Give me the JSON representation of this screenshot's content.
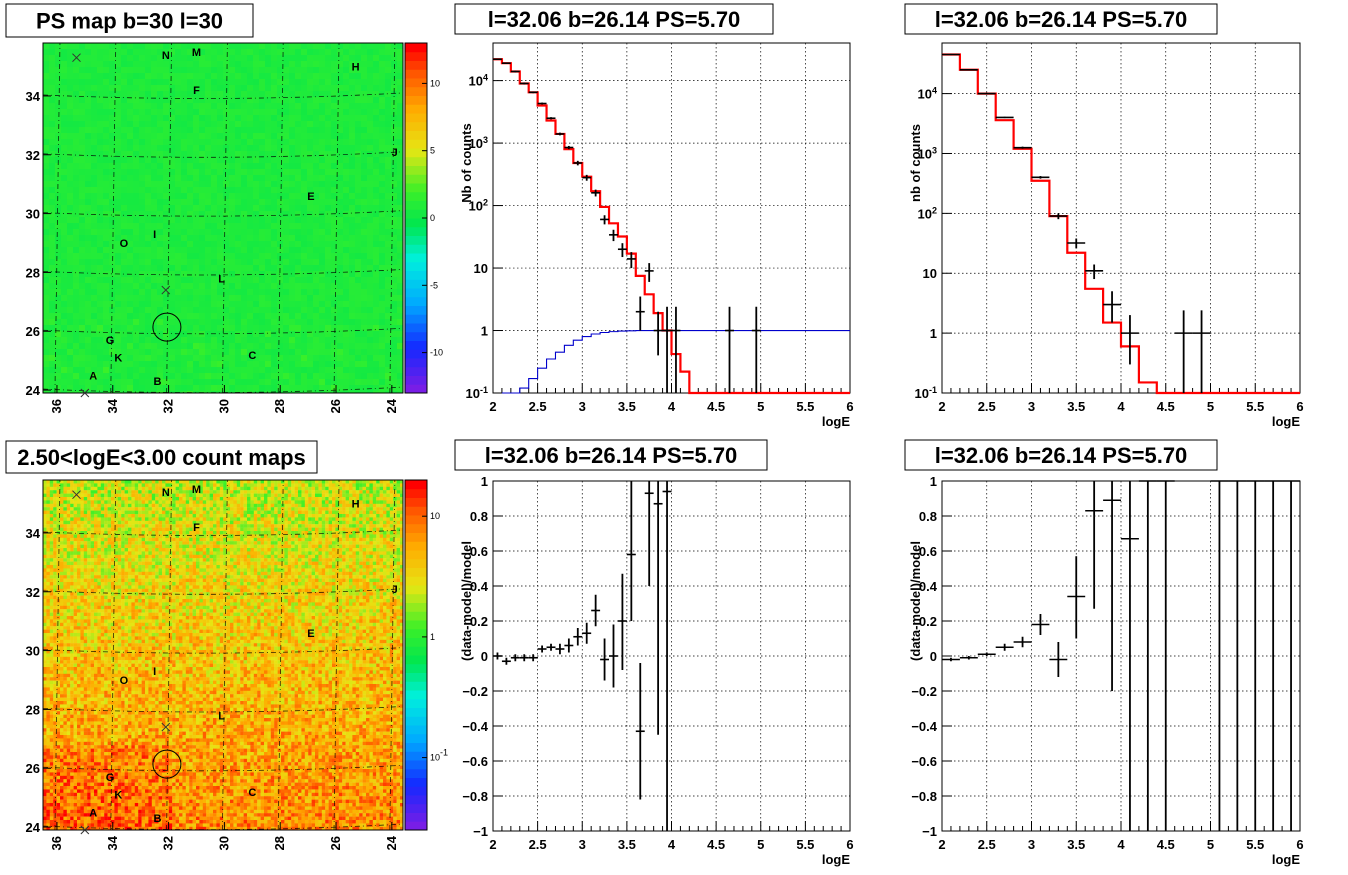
{
  "chart_data": [
    {
      "type": "heatmap",
      "title": "PS map b=30 l=30",
      "xlabel": "",
      "ylabel": "",
      "x_ticks": [
        "36",
        "34",
        "32",
        "30",
        "28",
        "26",
        "24"
      ],
      "y_ticks": [
        "24",
        "26",
        "28",
        "30",
        "32",
        "34"
      ],
      "xlim": [
        36.5,
        23.6
      ],
      "ylim": [
        23.9,
        35.8
      ],
      "palette_ticks": [
        "-10",
        "-5",
        "0",
        "5",
        "10"
      ],
      "palette_range": [
        -13,
        13
      ],
      "sources": [
        {
          "label": "N",
          "l": 32.1,
          "b": 35.4
        },
        {
          "label": "M",
          "l": 31.0,
          "b": 35.5
        },
        {
          "label": "H",
          "l": 25.3,
          "b": 35.0
        },
        {
          "label": "F",
          "l": 31.0,
          "b": 34.2
        },
        {
          "label": "J",
          "l": 23.9,
          "b": 32.1
        },
        {
          "label": "E",
          "l": 26.9,
          "b": 30.6
        },
        {
          "label": "I",
          "l": 32.5,
          "b": 29.3
        },
        {
          "label": "O",
          "l": 33.6,
          "b": 29.0
        },
        {
          "label": "L",
          "l": 30.1,
          "b": 27.8
        },
        {
          "label": "G",
          "l": 34.1,
          "b": 25.7
        },
        {
          "label": "K",
          "l": 33.8,
          "b": 25.1
        },
        {
          "label": "C",
          "l": 29.0,
          "b": 25.2
        },
        {
          "label": "A",
          "l": 34.7,
          "b": 24.5
        },
        {
          "label": "B",
          "l": 32.4,
          "b": 24.3
        }
      ],
      "crosses": [
        {
          "l": 35.3,
          "b": 35.3
        },
        {
          "l": 32.1,
          "b": 27.4
        },
        {
          "l": 35.0,
          "b": 23.9
        }
      ],
      "circle": {
        "l": 32.06,
        "b": 26.14
      }
    },
    {
      "type": "line",
      "title": "l=32.06 b=26.14 PS=5.70",
      "xlabel": "logE",
      "ylabel": "Nb of counts",
      "xlim": [
        2,
        6
      ],
      "ylim": [
        0.1,
        40000
      ],
      "y_scale": "log",
      "x_ticks": [
        "2",
        "2.5",
        "3",
        "3.5",
        "4",
        "4.5",
        "5",
        "5.5",
        "6"
      ],
      "y_ticks": [
        "10^-1",
        "1",
        "10",
        "10^2",
        "10^3",
        "10^4"
      ],
      "bin_width": 0.1,
      "series": [
        {
          "color": "#ff0000",
          "x": [
            2.0,
            2.1,
            2.2,
            2.3,
            2.4,
            2.5,
            2.6,
            2.7,
            2.8,
            2.9,
            3.0,
            3.1,
            3.2,
            3.3,
            3.4,
            3.5,
            3.6,
            3.7,
            3.8,
            3.9,
            4.0,
            4.1,
            4.2,
            4.3
          ],
          "values": [
            22000,
            19000,
            14000,
            9000,
            6500,
            4000,
            2300,
            1400,
            800,
            480,
            290,
            170,
            95,
            52,
            32,
            17,
            7.5,
            3.8,
            1.9,
            1.0,
            0.42,
            0.22,
            0.1,
            0.1
          ]
        },
        {
          "color": "#0000cc",
          "x": [
            2.1,
            2.2,
            2.3,
            2.4,
            2.5,
            2.6,
            2.7,
            2.8,
            2.9,
            3.0,
            3.1,
            3.2,
            3.3,
            3.4,
            3.5,
            3.6,
            3.7,
            3.8,
            3.9,
            4.0,
            4.5,
            5.0,
            5.5,
            6.0
          ],
          "values": [
            0.1,
            0.1,
            0.12,
            0.17,
            0.25,
            0.35,
            0.45,
            0.58,
            0.7,
            0.8,
            0.88,
            0.93,
            0.96,
            0.98,
            0.99,
            1.0,
            1.0,
            1.0,
            1.0,
            1.0,
            1.0,
            1.0,
            1.0,
            1.0
          ]
        }
      ],
      "points": [
        {
          "x": 2.05,
          "y": 22000,
          "lo": 21500,
          "hi": 22500
        },
        {
          "x": 2.15,
          "y": 19000,
          "lo": 18500,
          "hi": 19500
        },
        {
          "x": 2.25,
          "y": 14000,
          "lo": 13600,
          "hi": 14400
        },
        {
          "x": 2.35,
          "y": 9000,
          "lo": 8700,
          "hi": 9300
        },
        {
          "x": 2.45,
          "y": 6500,
          "lo": 6300,
          "hi": 6700
        },
        {
          "x": 2.55,
          "y": 4300,
          "lo": 4150,
          "hi": 4450
        },
        {
          "x": 2.65,
          "y": 2500,
          "lo": 2400,
          "hi": 2600
        },
        {
          "x": 2.75,
          "y": 1400,
          "lo": 1330,
          "hi": 1470
        },
        {
          "x": 2.85,
          "y": 850,
          "lo": 800,
          "hi": 900
        },
        {
          "x": 2.95,
          "y": 480,
          "lo": 440,
          "hi": 520
        },
        {
          "x": 3.05,
          "y": 280,
          "lo": 250,
          "hi": 310
        },
        {
          "x": 3.15,
          "y": 160,
          "lo": 140,
          "hi": 180
        },
        {
          "x": 3.25,
          "y": 60,
          "lo": 50,
          "hi": 70
        },
        {
          "x": 3.35,
          "y": 34,
          "lo": 27,
          "hi": 41
        },
        {
          "x": 3.45,
          "y": 20,
          "lo": 15,
          "hi": 25
        },
        {
          "x": 3.55,
          "y": 14,
          "lo": 10,
          "hi": 18
        },
        {
          "x": 3.65,
          "y": 2,
          "lo": 1,
          "hi": 3.5
        },
        {
          "x": 3.75,
          "y": 9,
          "lo": 6,
          "hi": 12
        },
        {
          "x": 3.85,
          "y": 1,
          "lo": 0.4,
          "hi": 2
        },
        {
          "x": 3.95,
          "y": 1,
          "lo": 0.1,
          "hi": 2.4
        },
        {
          "x": 4.05,
          "y": 1,
          "lo": 0.1,
          "hi": 2.4
        },
        {
          "x": 4.65,
          "y": 1,
          "lo": 0.1,
          "hi": 2.4
        },
        {
          "x": 4.95,
          "y": 1,
          "lo": 0.1,
          "hi": 2.4
        }
      ]
    },
    {
      "type": "line",
      "title": "l=32.06 b=26.14 PS=5.70",
      "xlabel": "logE",
      "ylabel": "nb of counts",
      "xlim": [
        2,
        6
      ],
      "ylim": [
        0.1,
        70000
      ],
      "y_scale": "log",
      "x_ticks": [
        "2",
        "2.5",
        "3",
        "3.5",
        "4",
        "4.5",
        "5",
        "5.5",
        "6"
      ],
      "y_ticks": [
        "10^-1",
        "1",
        "10",
        "10^2",
        "10^3",
        "10^4"
      ],
      "bin_width": 0.2,
      "series": [
        {
          "color": "#ff0000",
          "x": [
            2.0,
            2.2,
            2.4,
            2.6,
            2.8,
            3.0,
            3.2,
            3.4,
            3.6,
            3.8,
            4.0,
            4.2,
            4.4
          ],
          "values": [
            45000,
            25000,
            10000,
            3600,
            1200,
            350,
            90,
            22,
            5.5,
            1.5,
            0.6,
            0.15,
            0.1
          ]
        }
      ],
      "points": [
        {
          "x": 2.1,
          "y": 45000,
          "lo": 44000,
          "hi": 46000
        },
        {
          "x": 2.3,
          "y": 25000,
          "lo": 24500,
          "hi": 25500
        },
        {
          "x": 2.5,
          "y": 10000,
          "lo": 9800,
          "hi": 10200
        },
        {
          "x": 2.7,
          "y": 4000,
          "lo": 3900,
          "hi": 4100
        },
        {
          "x": 2.9,
          "y": 1250,
          "lo": 1200,
          "hi": 1300
        },
        {
          "x": 3.1,
          "y": 400,
          "lo": 380,
          "hi": 420
        },
        {
          "x": 3.3,
          "y": 90,
          "lo": 80,
          "hi": 100
        },
        {
          "x": 3.5,
          "y": 32,
          "lo": 26,
          "hi": 38
        },
        {
          "x": 3.7,
          "y": 11,
          "lo": 8,
          "hi": 14
        },
        {
          "x": 3.9,
          "y": 3,
          "lo": 1.5,
          "hi": 5
        },
        {
          "x": 4.1,
          "y": 1,
          "lo": 0.3,
          "hi": 2
        },
        {
          "x": 4.7,
          "y": 1,
          "lo": 0.1,
          "hi": 2.4
        },
        {
          "x": 4.9,
          "y": 1,
          "lo": 0.1,
          "hi": 2.4
        }
      ]
    },
    {
      "type": "heatmap",
      "title": "2.50<logE<3.00 count maps",
      "xlabel": "",
      "ylabel": "",
      "x_ticks": [
        "36",
        "34",
        "32",
        "30",
        "28",
        "26",
        "24"
      ],
      "y_ticks": [
        "24",
        "26",
        "28",
        "30",
        "32",
        "34"
      ],
      "xlim": [
        36.5,
        23.6
      ],
      "ylim": [
        23.9,
        35.8
      ],
      "palette_ticks": [
        "10^-1",
        "1",
        "10"
      ],
      "palette_scale": "log",
      "sources": [
        {
          "label": "N",
          "l": 32.1,
          "b": 35.4
        },
        {
          "label": "M",
          "l": 31.0,
          "b": 35.5
        },
        {
          "label": "H",
          "l": 25.3,
          "b": 35.0
        },
        {
          "label": "F",
          "l": 31.0,
          "b": 34.2
        },
        {
          "label": "J",
          "l": 23.9,
          "b": 32.1
        },
        {
          "label": "E",
          "l": 26.9,
          "b": 30.6
        },
        {
          "label": "I",
          "l": 32.5,
          "b": 29.3
        },
        {
          "label": "O",
          "l": 33.6,
          "b": 29.0
        },
        {
          "label": "L",
          "l": 30.1,
          "b": 27.8
        },
        {
          "label": "G",
          "l": 34.1,
          "b": 25.7
        },
        {
          "label": "K",
          "l": 33.8,
          "b": 25.1
        },
        {
          "label": "C",
          "l": 29.0,
          "b": 25.2
        },
        {
          "label": "A",
          "l": 34.7,
          "b": 24.5
        },
        {
          "label": "B",
          "l": 32.4,
          "b": 24.3
        }
      ],
      "crosses": [
        {
          "l": 35.3,
          "b": 35.3
        },
        {
          "l": 32.1,
          "b": 27.4
        },
        {
          "l": 35.0,
          "b": 23.9
        }
      ],
      "circle": {
        "l": 32.06,
        "b": 26.14
      }
    },
    {
      "type": "scatter",
      "title": "l=32.06 b=26.14 PS=5.70",
      "xlabel": "logE",
      "ylabel": "(data-model)/model",
      "xlim": [
        2,
        6
      ],
      "ylim": [
        -1,
        1
      ],
      "x_ticks": [
        "2",
        "2.5",
        "3",
        "3.5",
        "4",
        "4.5",
        "5",
        "5.5",
        "6"
      ],
      "y_ticks": [
        "−1",
        "−0.8",
        "−0.6",
        "−0.4",
        "−0.2",
        "0",
        "0.2",
        "0.4",
        "0.6",
        "0.8",
        "1"
      ],
      "bin_width": 0.1,
      "points": [
        {
          "x": 2.05,
          "y": 0.0,
          "lo": -0.02,
          "hi": 0.02
        },
        {
          "x": 2.15,
          "y": -0.03,
          "lo": -0.05,
          "hi": -0.01
        },
        {
          "x": 2.25,
          "y": -0.01,
          "lo": -0.03,
          "hi": 0.01
        },
        {
          "x": 2.35,
          "y": -0.01,
          "lo": -0.03,
          "hi": 0.01
        },
        {
          "x": 2.45,
          "y": -0.01,
          "lo": -0.03,
          "hi": 0.01
        },
        {
          "x": 2.55,
          "y": 0.04,
          "lo": 0.02,
          "hi": 0.06
        },
        {
          "x": 2.65,
          "y": 0.05,
          "lo": 0.03,
          "hi": 0.07
        },
        {
          "x": 2.75,
          "y": 0.04,
          "lo": 0.01,
          "hi": 0.07
        },
        {
          "x": 2.85,
          "y": 0.06,
          "lo": 0.02,
          "hi": 0.1
        },
        {
          "x": 2.95,
          "y": 0.11,
          "lo": 0.06,
          "hi": 0.16
        },
        {
          "x": 3.05,
          "y": 0.13,
          "lo": 0.07,
          "hi": 0.19
        },
        {
          "x": 3.15,
          "y": 0.26,
          "lo": 0.17,
          "hi": 0.35
        },
        {
          "x": 3.25,
          "y": -0.02,
          "lo": -0.14,
          "hi": 0.1
        },
        {
          "x": 3.35,
          "y": 0.0,
          "lo": -0.18,
          "hi": 0.18
        },
        {
          "x": 3.45,
          "y": 0.2,
          "lo": -0.08,
          "hi": 0.47
        },
        {
          "x": 3.55,
          "y": 0.58,
          "lo": 0.2,
          "hi": 1.0
        },
        {
          "x": 3.65,
          "y": -0.43,
          "lo": -0.82,
          "hi": -0.04
        },
        {
          "x": 3.75,
          "y": 0.93,
          "lo": 0.4,
          "hi": 1.0
        },
        {
          "x": 3.85,
          "y": 0.87,
          "lo": -0.45,
          "hi": 1.0
        },
        {
          "x": 3.95,
          "y": 0.94,
          "lo": -1.0,
          "hi": 1.0
        }
      ]
    },
    {
      "type": "scatter",
      "title": "l=32.06 b=26.14 PS=5.70",
      "xlabel": "logE",
      "ylabel": "(data-model)/model",
      "xlim": [
        2,
        6
      ],
      "ylim": [
        -1,
        1
      ],
      "x_ticks": [
        "2",
        "2.5",
        "3",
        "3.5",
        "4",
        "4.5",
        "5",
        "5.5",
        "6"
      ],
      "y_ticks": [
        "−1",
        "−0.8",
        "−0.6",
        "−0.4",
        "−0.2",
        "0",
        "0.2",
        "0.4",
        "0.6",
        "0.8",
        "1"
      ],
      "bin_width": 0.2,
      "points": [
        {
          "x": 2.1,
          "y": -0.02,
          "lo": -0.03,
          "hi": -0.01
        },
        {
          "x": 2.3,
          "y": -0.01,
          "lo": -0.02,
          "hi": 0.0
        },
        {
          "x": 2.5,
          "y": 0.01,
          "lo": 0.0,
          "hi": 0.02
        },
        {
          "x": 2.7,
          "y": 0.05,
          "lo": 0.03,
          "hi": 0.07
        },
        {
          "x": 2.9,
          "y": 0.08,
          "lo": 0.05,
          "hi": 0.11
        },
        {
          "x": 3.1,
          "y": 0.18,
          "lo": 0.12,
          "hi": 0.24
        },
        {
          "x": 3.3,
          "y": -0.02,
          "lo": -0.12,
          "hi": 0.08
        },
        {
          "x": 3.5,
          "y": 0.34,
          "lo": 0.1,
          "hi": 0.57
        },
        {
          "x": 3.7,
          "y": 0.83,
          "lo": 0.27,
          "hi": 1.0
        },
        {
          "x": 3.9,
          "y": 0.89,
          "lo": -0.2,
          "hi": 1.0
        },
        {
          "x": 4.1,
          "y": 0.67,
          "lo": -1.0,
          "hi": 1.0
        },
        {
          "x": 4.3,
          "y": 1.0,
          "lo": -1.0,
          "hi": 1.0
        },
        {
          "x": 4.5,
          "y": 1.0,
          "lo": -1.0,
          "hi": 1.0
        },
        {
          "x": 5.1,
          "y": 1.0,
          "lo": -1.0,
          "hi": 1.0
        },
        {
          "x": 5.3,
          "y": 1.0,
          "lo": -1.0,
          "hi": 1.0
        },
        {
          "x": 5.5,
          "y": 1.0,
          "lo": -1.0,
          "hi": 1.0
        },
        {
          "x": 5.7,
          "y": 1.0,
          "lo": -1.0,
          "hi": 1.0
        },
        {
          "x": 5.9,
          "y": 1.0,
          "lo": -1.0,
          "hi": 1.0
        }
      ]
    }
  ]
}
